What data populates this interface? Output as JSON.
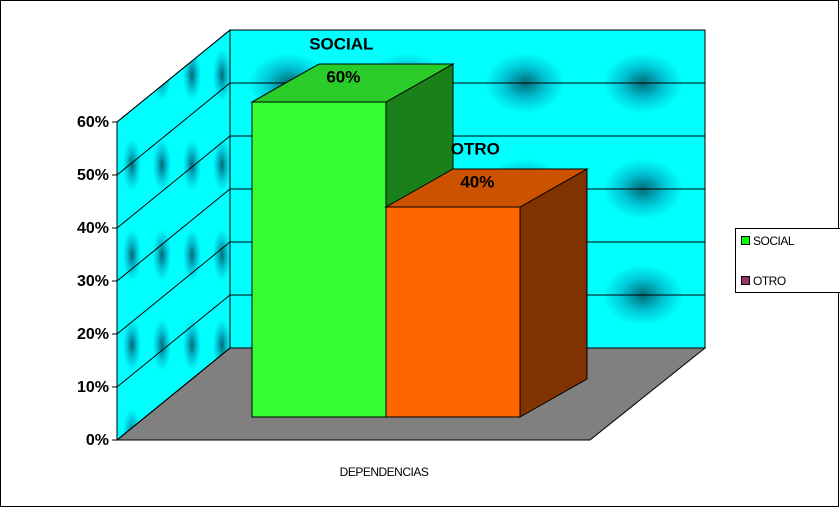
{
  "chart_data": {
    "type": "bar3d",
    "categories": [
      "DEPENDENCIAS"
    ],
    "series": [
      {
        "name": "SOCIAL",
        "color": "#33ff33",
        "legend_color": "#00ff00",
        "values": [
          60
        ],
        "value_labels": [
          "60%"
        ]
      },
      {
        "name": "OTRO",
        "color": "#ff6600",
        "legend_color": "#993366",
        "values": [
          40
        ],
        "value_labels": [
          "40%"
        ]
      }
    ],
    "ylim": [
      0,
      60
    ],
    "yticks": [
      {
        "value": 0,
        "label": "0%"
      },
      {
        "value": 10,
        "label": "10%"
      },
      {
        "value": 20,
        "label": "20%"
      },
      {
        "value": 30,
        "label": "30%"
      },
      {
        "value": 40,
        "label": "40%"
      },
      {
        "value": 50,
        "label": "50%"
      },
      {
        "value": 60,
        "label": "60%"
      }
    ],
    "grid": true,
    "legend": "right"
  }
}
